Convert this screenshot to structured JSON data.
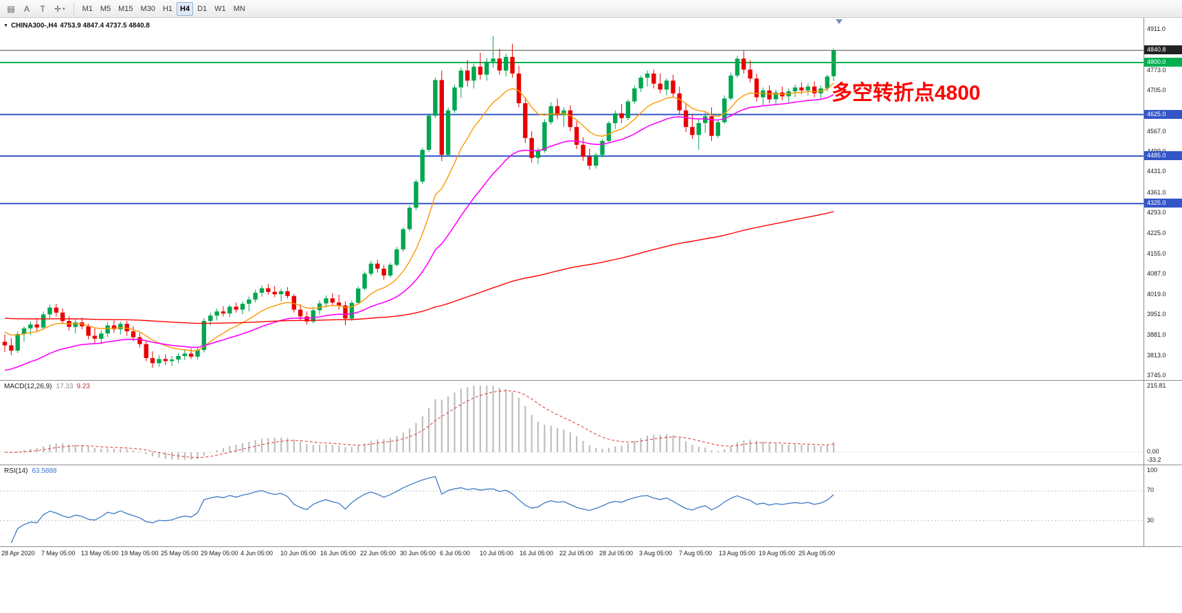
{
  "toolbar": {
    "icon_buttons": [
      {
        "name": "chart-window-icon",
        "glyph": "▤"
      },
      {
        "name": "arrow-tool",
        "glyph": "A"
      },
      {
        "name": "text-tool",
        "glyph": "T"
      },
      {
        "name": "crosshair-tool",
        "glyph": "✛",
        "caret": "▾"
      }
    ],
    "timeframes": [
      "M1",
      "M5",
      "M15",
      "M30",
      "H1",
      "H4",
      "D1",
      "W1",
      "MN"
    ],
    "active_timeframe": "H4"
  },
  "chart_data": {
    "type": "candlestick",
    "symbol": "CHINA300-,H4",
    "ohlc_label": "4753.9 4847.4 4737.5 4840.8",
    "annotation": "多空转折点4800",
    "up_color": "#00A64F",
    "down_color": "#E80000",
    "price_axis": {
      "view_top": 4950.3,
      "view_bottom": 3731.1,
      "ticks": [
        "4911.0",
        "4773.0",
        "4705.0",
        "4567.0",
        "4499.0",
        "4431.0",
        "4361.0",
        "4293.0",
        "4225.0",
        "4155.0",
        "4087.0",
        "4019.0",
        "3951.0",
        "3881.0",
        "3813.0",
        "3745.0"
      ]
    },
    "levels": [
      {
        "price": 4840.8,
        "label": "4840.8",
        "kind": "current",
        "color": "#222222",
        "line": "#4a4a4a"
      },
      {
        "price": 4800.0,
        "label": "4800.0",
        "kind": "hline",
        "color": "#00B050"
      },
      {
        "price": 4625.0,
        "label": "4625.0",
        "kind": "hline",
        "color": "#3355C8"
      },
      {
        "price": 4485.0,
        "label": "4485.0",
        "kind": "hline",
        "color": "#3355C8"
      },
      {
        "price": 4325.0,
        "label": "4325.0",
        "kind": "hline",
        "color": "#3355C8"
      }
    ],
    "ma_lines": [
      {
        "period": 12,
        "seed": 3900,
        "color": "#FF9800",
        "width": 1.4
      },
      {
        "period": 30,
        "seed": 3758,
        "color": "#FF00FF",
        "width": 1.6
      },
      {
        "period": 200,
        "seed": 3940,
        "color": "#FF0000",
        "width": 1.4
      }
    ],
    "candles": [
      [
        3860,
        3885,
        3825,
        3848
      ],
      [
        3848,
        3872,
        3815,
        3830
      ],
      [
        3830,
        3895,
        3822,
        3886
      ],
      [
        3886,
        3912,
        3860,
        3905
      ],
      [
        3905,
        3928,
        3882,
        3918
      ],
      [
        3918,
        3940,
        3895,
        3908
      ],
      [
        3908,
        3962,
        3900,
        3952
      ],
      [
        3952,
        3985,
        3938,
        3975
      ],
      [
        3975,
        3988,
        3945,
        3958
      ],
      [
        3958,
        3972,
        3920,
        3930
      ],
      [
        3930,
        3945,
        3898,
        3910
      ],
      [
        3910,
        3938,
        3888,
        3925
      ],
      [
        3925,
        3942,
        3902,
        3912
      ],
      [
        3912,
        3920,
        3868,
        3880
      ],
      [
        3880,
        3905,
        3855,
        3870
      ],
      [
        3870,
        3898,
        3852,
        3888
      ],
      [
        3888,
        3925,
        3875,
        3915
      ],
      [
        3915,
        3932,
        3890,
        3902
      ],
      [
        3902,
        3928,
        3885,
        3920
      ],
      [
        3920,
        3930,
        3880,
        3895
      ],
      [
        3895,
        3912,
        3862,
        3875
      ],
      [
        3875,
        3890,
        3840,
        3852
      ],
      [
        3852,
        3862,
        3795,
        3805
      ],
      [
        3805,
        3828,
        3772,
        3788
      ],
      [
        3788,
        3815,
        3775,
        3802
      ],
      [
        3802,
        3818,
        3782,
        3795
      ],
      [
        3795,
        3812,
        3778,
        3800
      ],
      [
        3800,
        3822,
        3788,
        3812
      ],
      [
        3812,
        3835,
        3798,
        3820
      ],
      [
        3820,
        3838,
        3802,
        3810
      ],
      [
        3810,
        3842,
        3800,
        3832
      ],
      [
        3832,
        3940,
        3824,
        3930
      ],
      [
        3930,
        3958,
        3915,
        3948
      ],
      [
        3948,
        3972,
        3932,
        3962
      ],
      [
        3962,
        3980,
        3945,
        3955
      ],
      [
        3955,
        3985,
        3942,
        3978
      ],
      [
        3978,
        3992,
        3958,
        3968
      ],
      [
        3968,
        3996,
        3952,
        3988
      ],
      [
        3988,
        4012,
        3962,
        4002
      ],
      [
        4002,
        4035,
        3992,
        4025
      ],
      [
        4025,
        4050,
        4012,
        4040
      ],
      [
        4040,
        4055,
        4018,
        4028
      ],
      [
        4028,
        4048,
        4010,
        4020
      ],
      [
        4020,
        4038,
        3996,
        4030
      ],
      [
        4030,
        4044,
        4006,
        4014
      ],
      [
        4014,
        4020,
        3958,
        3968
      ],
      [
        3968,
        3986,
        3932,
        3945
      ],
      [
        3945,
        3962,
        3918,
        3928
      ],
      [
        3928,
        3976,
        3922,
        3966
      ],
      [
        3966,
        3999,
        3952,
        3989
      ],
      [
        3989,
        4016,
        3976,
        4006
      ],
      [
        4006,
        4023,
        3980,
        3992
      ],
      [
        3992,
        4018,
        3968,
        3982
      ],
      [
        3982,
        3996,
        3915,
        3938
      ],
      [
        3938,
        3999,
        3930,
        3991
      ],
      [
        3991,
        4046,
        3986,
        4039
      ],
      [
        4039,
        4096,
        4033,
        4089
      ],
      [
        4089,
        4133,
        4081,
        4123
      ],
      [
        4123,
        4136,
        4093,
        4106
      ],
      [
        4106,
        4119,
        4069,
        4083
      ],
      [
        4083,
        4126,
        4076,
        4119
      ],
      [
        4119,
        4179,
        4113,
        4171
      ],
      [
        4171,
        4246,
        4163,
        4239
      ],
      [
        4239,
        4319,
        4231,
        4311
      ],
      [
        4311,
        4406,
        4303,
        4399
      ],
      [
        4399,
        4513,
        4391,
        4506
      ],
      [
        4506,
        4629,
        4499,
        4621
      ],
      [
        4621,
        4749,
        4613,
        4741
      ],
      [
        4741,
        4773,
        4468,
        4489
      ],
      [
        4489,
        4649,
        4483,
        4639
      ],
      [
        4639,
        4726,
        4631,
        4716
      ],
      [
        4716,
        4783,
        4681,
        4773
      ],
      [
        4773,
        4809,
        4719,
        4739
      ],
      [
        4739,
        4796,
        4713,
        4786
      ],
      [
        4786,
        4833,
        4743,
        4759
      ],
      [
        4759,
        4816,
        4739,
        4803
      ],
      [
        4803,
        4889,
        4783,
        4813
      ],
      [
        4813,
        4846,
        4759,
        4773
      ],
      [
        4773,
        4829,
        4753,
        4819
      ],
      [
        4819,
        4863,
        4749,
        4763
      ],
      [
        4763,
        4789,
        4649,
        4663
      ],
      [
        4663,
        4681,
        4529,
        4546
      ],
      [
        4546,
        4569,
        4463,
        4479
      ],
      [
        4479,
        4513,
        4459,
        4503
      ],
      [
        4503,
        4609,
        4496,
        4599
      ],
      [
        4599,
        4666,
        4591,
        4653
      ],
      [
        4653,
        4679,
        4609,
        4623
      ],
      [
        4623,
        4649,
        4583,
        4639
      ],
      [
        4639,
        4656,
        4569,
        4583
      ],
      [
        4583,
        4603,
        4509,
        4523
      ],
      [
        4523,
        4549,
        4469,
        4483
      ],
      [
        4483,
        4511,
        4439,
        4453
      ],
      [
        4453,
        4496,
        4443,
        4489
      ],
      [
        4489,
        4543,
        4481,
        4536
      ],
      [
        4536,
        4603,
        4529,
        4596
      ],
      [
        4596,
        4639,
        4576,
        4629
      ],
      [
        4629,
        4661,
        4596,
        4613
      ],
      [
        4613,
        4676,
        4606,
        4669
      ],
      [
        4669,
        4723,
        4661,
        4713
      ],
      [
        4713,
        4756,
        4701,
        4749
      ],
      [
        4749,
        4773,
        4719,
        4763
      ],
      [
        4763,
        4776,
        4713,
        4729
      ],
      [
        4729,
        4763,
        4696,
        4709
      ],
      [
        4709,
        4746,
        4689,
        4739
      ],
      [
        4739,
        4759,
        4683,
        4696
      ],
      [
        4696,
        4719,
        4623,
        4639
      ],
      [
        4639,
        4663,
        4566,
        4583
      ],
      [
        4583,
        4626,
        4543,
        4556
      ],
      [
        4556,
        4609,
        4506,
        4596
      ],
      [
        4596,
        4633,
        4563,
        4619
      ],
      [
        4619,
        4649,
        4536,
        4553
      ],
      [
        4553,
        4606,
        4546,
        4599
      ],
      [
        4599,
        4689,
        4593,
        4679
      ],
      [
        4679,
        4766,
        4673,
        4756
      ],
      [
        4756,
        4823,
        4749,
        4813
      ],
      [
        4813,
        4839,
        4763,
        4776
      ],
      [
        4776,
        4809,
        4733,
        4746
      ],
      [
        4746,
        4763,
        4669,
        4683
      ],
      [
        4683,
        4716,
        4653,
        4706
      ],
      [
        4706,
        4723,
        4663,
        4676
      ],
      [
        4676,
        4709,
        4656,
        4699
      ],
      [
        4699,
        4719,
        4673,
        4686
      ],
      [
        4686,
        4713,
        4666,
        4703
      ],
      [
        4703,
        4726,
        4683,
        4716
      ],
      [
        4716,
        4733,
        4693,
        4706
      ],
      [
        4706,
        4729,
        4689,
        4719
      ],
      [
        4719,
        4736,
        4683,
        4696
      ],
      [
        4696,
        4723,
        4679,
        4713
      ],
      [
        4713,
        4759,
        4703,
        4753
      ],
      [
        4753.9,
        4847.4,
        4737.5,
        4840.8
      ]
    ],
    "time_labels": [
      "28 Apr 2020",
      "7 May 05:00",
      "13 May 05:00",
      "19 May 05:00",
      "25 May 05:00",
      "29 May 05:00",
      "4 Jun 05:00",
      "10 Jun 05:00",
      "16 Jun 05:00",
      "22 Jun 05:00",
      "30 Jun 05:00",
      "6 Jul 05:00",
      "10 Jul 05:00",
      "16 Jul 05:00",
      "22 Jul 05:00",
      "28 Jul 05:00",
      "3 Aug 05:00",
      "7 Aug 05:00",
      "13 Aug 05:00",
      "19 Aug 05:00",
      "25 Aug 05:00"
    ],
    "macd": {
      "name": "MACD(12,26,9)",
      "value_main": "17.33",
      "value_signal": "9.23",
      "fast": 12,
      "slow": 26,
      "signal": 9,
      "axis_top": "215.81",
      "axis_zero": "0.00",
      "axis_bottom": "-33.2",
      "hist_color": "#BEBEBE",
      "signal_color": "#E03030"
    },
    "rsi": {
      "name": "RSI(14)",
      "value": "63.5888",
      "period": 14,
      "levels": [
        70,
        30
      ],
      "axis_top": "100",
      "color": "#3A79C5",
      "level_color": "#C0C0C0"
    }
  }
}
